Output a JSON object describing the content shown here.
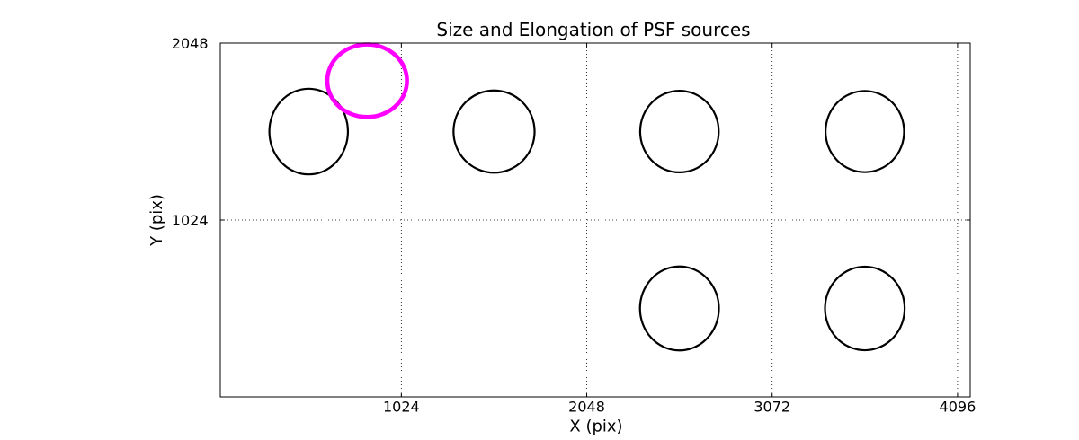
{
  "figure": {
    "background": "#ffffff",
    "foreground": "#000000"
  },
  "chart_data": {
    "type": "scatter",
    "title": "Size and Elongation of PSF sources",
    "xlabel": "X (pix)",
    "ylabel": "Y (pix)",
    "xlim": [
      24,
      4166
    ],
    "ylim": [
      0,
      2048
    ],
    "xticks": [
      1024,
      2048,
      3072,
      4096
    ],
    "yticks": [
      1024,
      2048
    ],
    "grid": {
      "visible": true,
      "linestyle": "dotted",
      "color": "#000000"
    },
    "legend": "none",
    "colors": {
      "normal_source": "#000000",
      "flagged_source": "#ff00ff"
    },
    "ellipses": [
      {
        "x": 512,
        "y": 1536,
        "rx": 217,
        "ry": 248,
        "color": "#000000",
        "linewidth": 2.2,
        "flagged": false
      },
      {
        "x": 1536,
        "y": 1536,
        "rx": 224,
        "ry": 238,
        "color": "#000000",
        "linewidth": 2.2,
        "flagged": false
      },
      {
        "x": 2560,
        "y": 1536,
        "rx": 217,
        "ry": 236,
        "color": "#000000",
        "linewidth": 2.2,
        "flagged": false
      },
      {
        "x": 3584,
        "y": 1536,
        "rx": 217,
        "ry": 235,
        "color": "#000000",
        "linewidth": 2.2,
        "flagged": false
      },
      {
        "x": 2560,
        "y": 512,
        "rx": 218,
        "ry": 243,
        "color": "#000000",
        "linewidth": 2.2,
        "flagged": false
      },
      {
        "x": 3584,
        "y": 512,
        "rx": 220,
        "ry": 242,
        "color": "#000000",
        "linewidth": 2.2,
        "flagged": false
      },
      {
        "x": 835,
        "y": 1830,
        "rx": 220,
        "ry": 210,
        "color": "#ff00ff",
        "linewidth": 4.6,
        "flagged": true
      }
    ]
  }
}
